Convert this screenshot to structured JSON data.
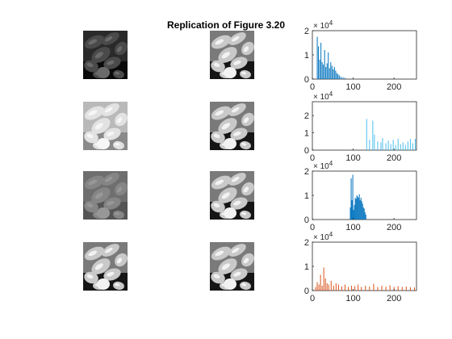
{
  "figure": {
    "title": "Replication of Figure 3.20"
  },
  "chart_data": [
    {
      "type": "bar",
      "row": 1,
      "color": "#0072BD",
      "xlim": [
        0,
        255
      ],
      "ylim": [
        0,
        20000
      ],
      "x_ticks": [
        "0",
        "100",
        "200"
      ],
      "y_ticks": [
        "0",
        "1",
        "2"
      ],
      "y_exponent_label": "× 10",
      "y_exponent_power": "4",
      "x": [
        12,
        15,
        18,
        21,
        24,
        27,
        30,
        33,
        36,
        39,
        42,
        45,
        48,
        51,
        54,
        57,
        60,
        63,
        66,
        70,
        75,
        80
      ],
      "values": [
        17500,
        13500,
        8000,
        15000,
        7000,
        6000,
        12000,
        5000,
        6500,
        11000,
        4500,
        7000,
        5500,
        4000,
        5000,
        3500,
        2500,
        2000,
        1500,
        1000,
        800,
        500
      ]
    },
    {
      "type": "bar",
      "row": 2,
      "color": "#4DBEEE",
      "xlim": [
        0,
        255
      ],
      "ylim": [
        0,
        28000
      ],
      "x_ticks": [
        "0",
        "100",
        "200"
      ],
      "y_ticks": [
        "0",
        "1",
        "2"
      ],
      "y_exponent_label": "× 10",
      "y_exponent_power": "4",
      "x": [
        133,
        140,
        148,
        152,
        160,
        168,
        172,
        180,
        186,
        192,
        198,
        204,
        210,
        216,
        222,
        228,
        234,
        240,
        246,
        252
      ],
      "values": [
        18000,
        6000,
        17000,
        9000,
        5000,
        4500,
        7000,
        4000,
        5500,
        3500,
        6000,
        3000,
        6500,
        3500,
        4500,
        3000,
        5000,
        6500,
        4000,
        6500
      ]
    },
    {
      "type": "bar",
      "row": 3,
      "color": "#0072BD",
      "xlim": [
        0,
        255
      ],
      "ylim": [
        0,
        20000
      ],
      "x_ticks": [
        "0",
        "100",
        "200"
      ],
      "y_ticks": [
        "0",
        "1",
        "2"
      ],
      "y_exponent_label": "× 10",
      "y_exponent_power": "4",
      "x": [
        93,
        95,
        97,
        99,
        101,
        103,
        105,
        107,
        109,
        111,
        113,
        115,
        117,
        119,
        121,
        123,
        125,
        127,
        129,
        131
      ],
      "values": [
        5000,
        17000,
        8000,
        18500,
        4000,
        6000,
        9000,
        8500,
        10000,
        9500,
        9000,
        10500,
        8000,
        9000,
        7500,
        6500,
        5000,
        4500,
        3000,
        2000
      ]
    },
    {
      "type": "bar",
      "row": 4,
      "color": "#D95319",
      "xlim": [
        0,
        255
      ],
      "ylim": [
        0,
        20000
      ],
      "x_ticks": [
        "0",
        "100",
        "200"
      ],
      "y_ticks": [
        "0",
        "1",
        "2"
      ],
      "y_exponent_label": "× 10",
      "y_exponent_power": "4",
      "x": [
        8,
        12,
        16,
        20,
        24,
        28,
        32,
        36,
        40,
        46,
        52,
        58,
        64,
        72,
        80,
        88,
        96,
        104,
        112,
        120,
        130,
        140,
        150,
        160,
        170,
        180,
        190,
        200,
        210,
        220,
        230,
        240,
        250
      ],
      "values": [
        1500,
        3500,
        2500,
        6500,
        2000,
        9500,
        5000,
        3000,
        2500,
        4000,
        2000,
        3000,
        2500,
        1800,
        2500,
        1500,
        2000,
        1800,
        2500,
        1500,
        2000,
        1700,
        2800,
        1500,
        2000,
        1600,
        2200,
        1500,
        1800,
        1500,
        1700,
        1400,
        1300
      ]
    }
  ]
}
